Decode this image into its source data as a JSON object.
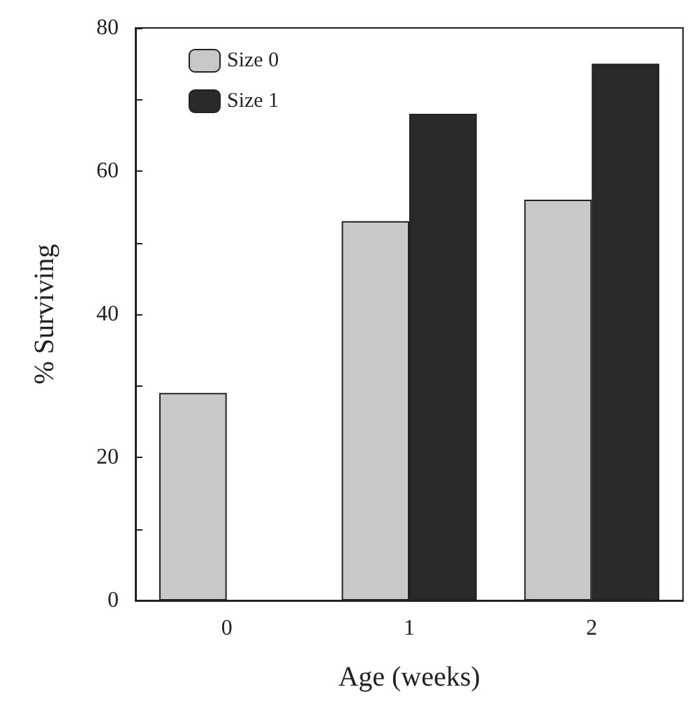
{
  "chart_data": {
    "type": "bar",
    "xlabel": "Age (weeks)",
    "ylabel": "% Surviving",
    "categories": [
      "0",
      "1",
      "2"
    ],
    "series": [
      {
        "name": "Size 0",
        "color": "#c8c8c8",
        "values": [
          29,
          53,
          56
        ]
      },
      {
        "name": "Size 1",
        "color": "#2a2a2a",
        "values": [
          null,
          68,
          75
        ]
      }
    ],
    "ylim": [
      0,
      80
    ],
    "yticks": [
      0,
      {
        "value": 10,
        "label": null
      },
      20,
      {
        "value": 30,
        "label": null
      },
      40,
      {
        "value": 50,
        "label": null
      },
      60,
      {
        "value": 70,
        "label": null
      },
      80
    ],
    "grid": false,
    "legend": "top left"
  }
}
